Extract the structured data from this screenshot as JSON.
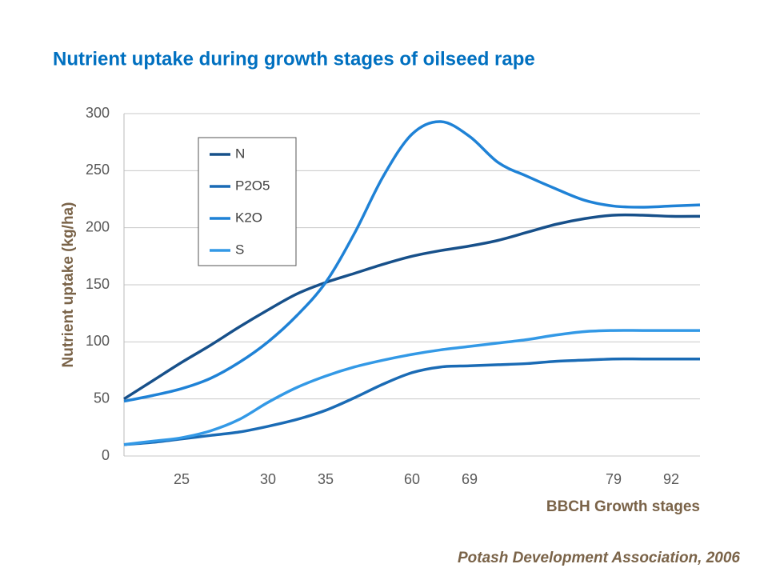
{
  "chart_data": {
    "type": "line",
    "title": "Nutrient uptake during growth stages of oilseed rape",
    "y_label": "Nutrient uptake (kg/ha)",
    "x_label": "BBCH Growth stages",
    "source": "Potash Development Association, 2006",
    "categories": [
      null,
      null,
      "25",
      null,
      null,
      "30",
      null,
      "35",
      null,
      null,
      "60",
      null,
      "69",
      null,
      null,
      null,
      null,
      "79",
      null,
      "92",
      null
    ],
    "series": [
      {
        "name": "N",
        "color": "#17508a",
        "values": [
          50,
          66,
          82,
          97,
          113,
          128,
          142,
          152,
          160,
          168,
          175,
          180,
          184,
          189,
          196,
          203,
          208,
          211,
          211,
          210,
          210
        ]
      },
      {
        "name": "P2O5",
        "color": "#1a6bb5",
        "values": [
          10,
          12,
          15,
          18,
          21,
          26,
          32,
          40,
          51,
          63,
          73,
          78,
          79,
          80,
          81,
          83,
          84,
          85,
          85,
          85,
          85
        ]
      },
      {
        "name": "K2O",
        "color": "#1f82d6",
        "values": [
          48,
          53,
          59,
          68,
          82,
          100,
          123,
          152,
          195,
          245,
          282,
          293,
          280,
          257,
          245,
          234,
          224,
          219,
          218,
          219,
          220
        ]
      },
      {
        "name": "S",
        "color": "#3399e6",
        "values": [
          10,
          13,
          16,
          22,
          32,
          47,
          60,
          70,
          78,
          84,
          89,
          93,
          96,
          99,
          102,
          106,
          109,
          110,
          110,
          110,
          110
        ]
      }
    ],
    "ylim": [
      0,
      300
    ],
    "yticks": [
      0,
      50,
      100,
      150,
      200,
      250,
      300
    ],
    "grid": true,
    "legend": "top-left"
  }
}
